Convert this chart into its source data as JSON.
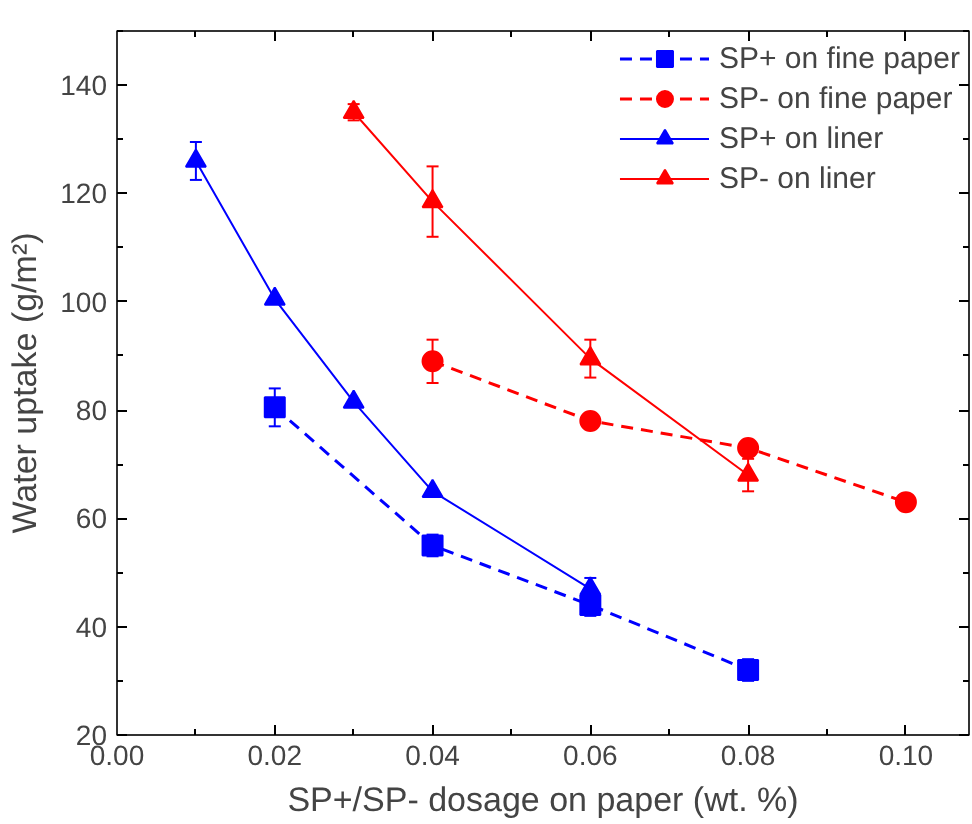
{
  "chart_data": {
    "type": "line",
    "xlabel": "SP+/SP- dosage on paper (wt. %)",
    "ylabel": "Water uptake (g/m²)",
    "xlim": [
      0,
      0.108
    ],
    "xticks": [
      {
        "value": 0,
        "label": "0.00"
      },
      {
        "value": 0.02,
        "label": "0.02"
      },
      {
        "value": 0.04,
        "label": "0.04"
      },
      {
        "value": 0.06,
        "label": "0.06"
      },
      {
        "value": 0.08,
        "label": "0.08"
      },
      {
        "value": 0.1,
        "label": "0.10"
      }
    ],
    "ylim": [
      20,
      150
    ],
    "yticks": [
      20,
      40,
      60,
      80,
      100,
      120,
      140
    ],
    "grid": false,
    "legend": "top right",
    "series": [
      {
        "name": "SP+ on fine paper",
        "color": "#0000ff",
        "marker": "square",
        "line_style": "dashed",
        "x": [
          0.02,
          0.04,
          0.06,
          0.08
        ],
        "values": [
          80.5,
          55,
          44,
          32
        ],
        "errors": [
          3.5,
          2,
          2,
          2
        ]
      },
      {
        "name": "SP- on fine paper",
        "color": "#ff0000",
        "marker": "circle",
        "line_style": "dashed",
        "x": [
          0.04,
          0.06,
          0.08,
          0.1
        ],
        "values": [
          89,
          78,
          73,
          63
        ],
        "errors": [
          4,
          null,
          null,
          null
        ]
      },
      {
        "name": "SP+ on liner",
        "color": "#0000ff",
        "marker": "triangle",
        "line_style": "solid",
        "x": [
          0.01,
          0.02,
          0.03,
          0.04,
          0.06
        ],
        "values": [
          126,
          100.5,
          81.5,
          65,
          47
        ],
        "errors": [
          3.5,
          null,
          null,
          null,
          2
        ]
      },
      {
        "name": "SP- on liner",
        "color": "#ff0000",
        "marker": "triangle",
        "line_style": "solid",
        "x": [
          0.03,
          0.04,
          0.06,
          0.08
        ],
        "values": [
          135,
          118.5,
          89.5,
          68
        ],
        "errors": [
          1.5,
          6.5,
          3.5,
          3
        ]
      }
    ]
  }
}
